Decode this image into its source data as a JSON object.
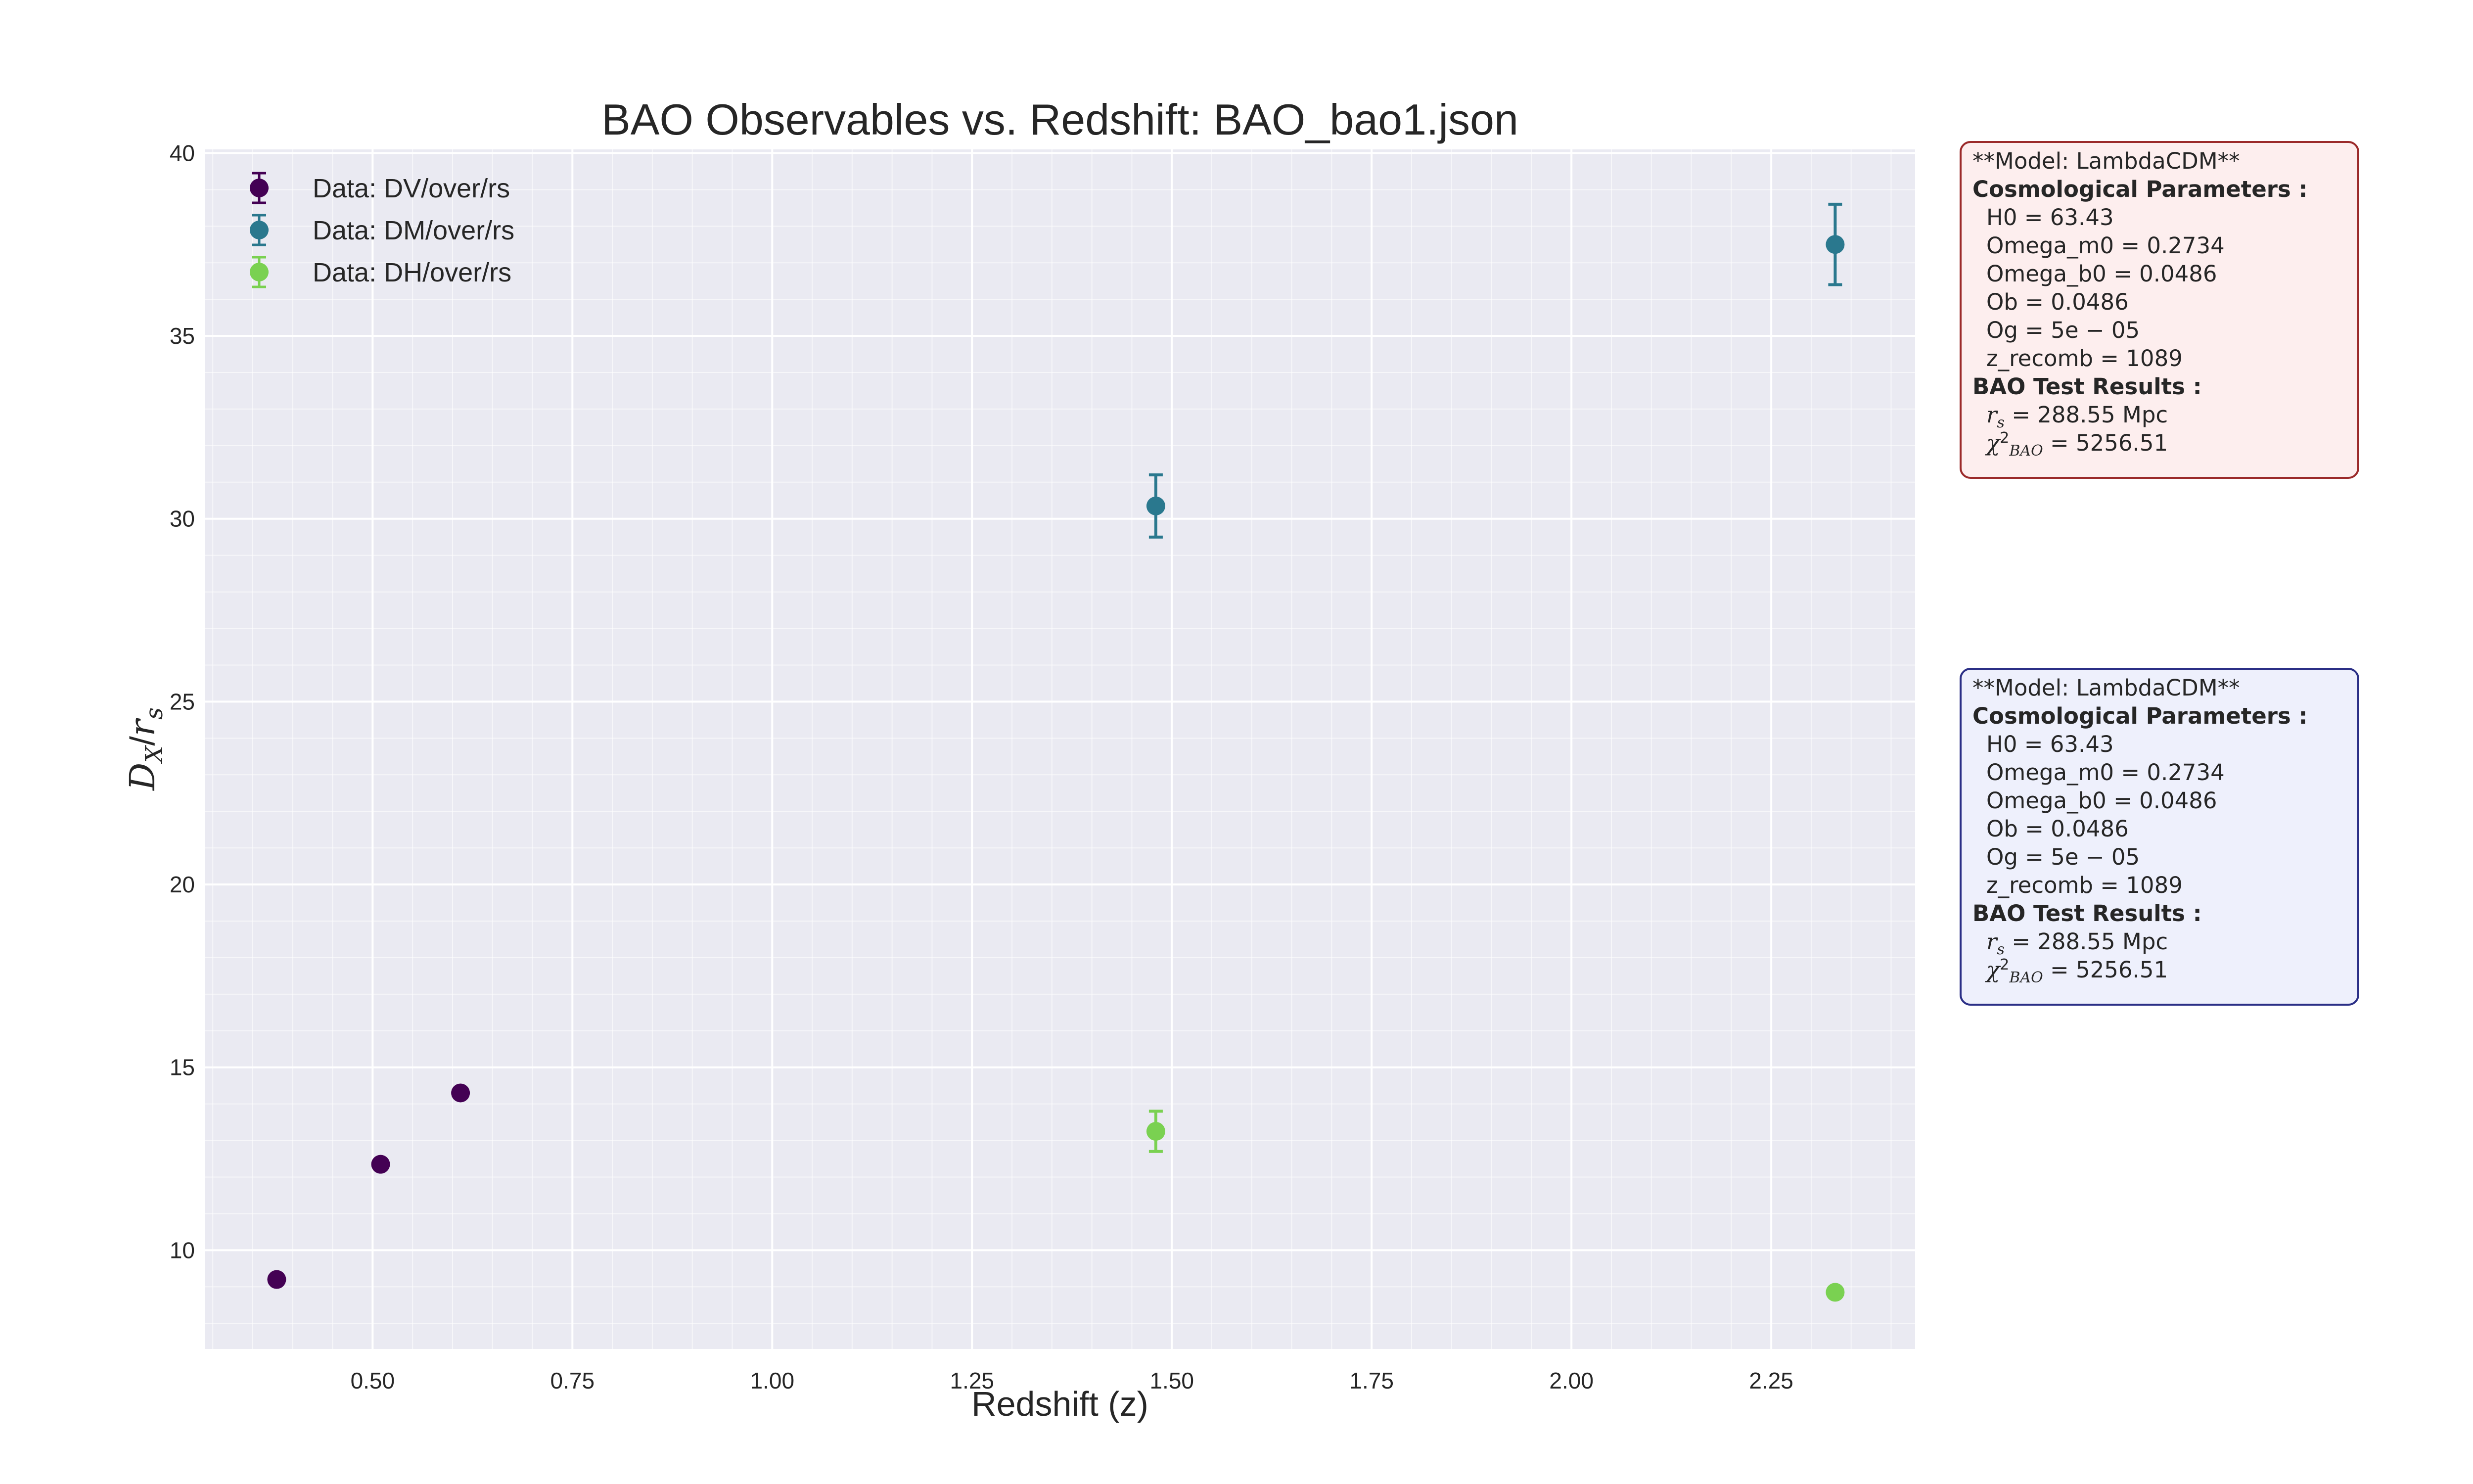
{
  "colors": {
    "plot_background": "#eaeaf2",
    "grid": "#ffffff",
    "series_DV": "#440154",
    "series_DM": "#2a788e",
    "series_DH": "#7ad151",
    "box1_background": "#fdeeee",
    "box1_border": "#9b2a2a",
    "box2_background": "#eef0fc",
    "box2_border": "#2b2f86"
  },
  "chart_data": {
    "type": "scatter",
    "title": "BAO Observables vs. Redshift: BAO_bao1.json",
    "xlabel": "Redshift (z)",
    "ylabel": "D_X/r_s",
    "xlim": [
      0.29,
      2.43
    ],
    "ylim": [
      7.3,
      40.1
    ],
    "xticks": [
      "0.50",
      "0.75",
      "1.00",
      "1.25",
      "1.50",
      "1.75",
      "2.00",
      "2.25"
    ],
    "yticks": [
      "10",
      "15",
      "20",
      "25",
      "30",
      "35",
      "40"
    ],
    "grid": true,
    "legend_position": "top-left",
    "series": [
      {
        "name": "Data: DV/over/rs",
        "points": [
          {
            "x": 0.38,
            "y": 9.2,
            "err": 0.1
          },
          {
            "x": 0.51,
            "y": 12.35,
            "err": 0.1
          },
          {
            "x": 0.61,
            "y": 14.3,
            "err": 0.1
          }
        ]
      },
      {
        "name": "Data: DM/over/rs",
        "points": [
          {
            "x": 1.48,
            "y": 30.35,
            "err": 0.85
          },
          {
            "x": 2.33,
            "y": 37.5,
            "err": 1.1
          }
        ]
      },
      {
        "name": "Data: DH/over/rs",
        "points": [
          {
            "x": 1.48,
            "y": 13.25,
            "err": 0.55
          },
          {
            "x": 2.33,
            "y": 8.85,
            "err": 0.1
          }
        ]
      }
    ]
  },
  "info_boxes": [
    {
      "model": "**Model: LambdaCDM**",
      "params_heading": "Cosmological Parameters :",
      "params": [
        "H0 = 63.43",
        "Omega_m0 = 0.2734",
        "Omega_b0 = 0.0486",
        "Ob = 0.0486",
        "Og = 5e − 05",
        "z_recomb = 1089"
      ],
      "results_heading": "BAO Test Results :",
      "rs_value": " = 288.55 Mpc",
      "chi2_value": " = 5256.51"
    },
    {
      "model": "**Model: LambdaCDM**",
      "params_heading": "Cosmological Parameters :",
      "params": [
        "H0 = 63.43",
        "Omega_m0 = 0.2734",
        "Omega_b0 = 0.0486",
        "Ob = 0.0486",
        "Og = 5e − 05",
        "z_recomb = 1089"
      ],
      "results_heading": "BAO Test Results :",
      "rs_value": " = 288.55 Mpc",
      "chi2_value": " = 5256.51"
    }
  ]
}
